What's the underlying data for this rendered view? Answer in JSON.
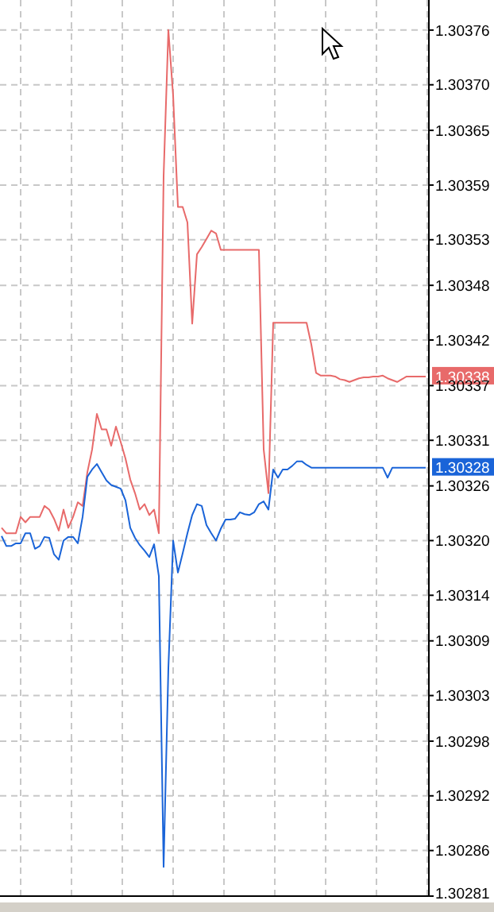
{
  "chart_data": {
    "type": "line",
    "tick_labels": "y",
    "grid": true,
    "categories": [
      null,
      null,
      null,
      null,
      null,
      null,
      null,
      null,
      null,
      null,
      null,
      null,
      null,
      null,
      null,
      null,
      null,
      null,
      null,
      null,
      null,
      null,
      null,
      null,
      null,
      null,
      null,
      null,
      null,
      null,
      null,
      null,
      null,
      null,
      null,
      null,
      null,
      null,
      null,
      null,
      null,
      null,
      null,
      null,
      null,
      null,
      null,
      null,
      null,
      null,
      null,
      null,
      null,
      null,
      null,
      null,
      null,
      null,
      null,
      null,
      null,
      null,
      null,
      null,
      null,
      null,
      null,
      null,
      null,
      null,
      null,
      null,
      null,
      null,
      null,
      null,
      null,
      null,
      null,
      null,
      null,
      null,
      null,
      null,
      null,
      null,
      null,
      null,
      null,
      null
    ],
    "ylim": [
      1.30281,
      1.303793
    ],
    "yticks": [
      1.30376,
      {
        "value": 1.3037,
        "label": "1.30370"
      },
      1.30365,
      1.30359,
      1.30353,
      1.30348,
      1.30342,
      1.30337,
      1.30331,
      1.30326,
      {
        "value": 1.3032,
        "label": "1.30320"
      },
      1.30314,
      1.30309,
      1.30303,
      1.30298,
      1.30292,
      1.30286,
      1.30281
    ],
    "series": [
      {
        "color": "#e86a6a",
        "values": [
          1.303214,
          1.303208,
          1.303208,
          1.303208,
          1.303226,
          1.30322,
          1.303226,
          1.303226,
          1.303226,
          1.303238,
          1.303234,
          1.303224,
          1.303211,
          1.303234,
          1.303214,
          1.303226,
          1.303242,
          1.303238,
          1.303275,
          1.3033,
          1.303339,
          1.303322,
          1.303322,
          1.303304,
          1.303325,
          1.303308,
          1.30329,
          1.303267,
          1.303252,
          1.303234,
          1.30324,
          1.303228,
          1.303234,
          1.303208,
          1.3036,
          1.30376,
          1.303688,
          1.303566,
          1.303566,
          1.303549,
          1.303438,
          1.303514,
          1.303522,
          1.303531,
          1.30354,
          1.303537,
          1.303519,
          1.303519,
          1.303519,
          1.303519,
          1.303519,
          1.303519,
          1.303519,
          1.303519,
          1.303519,
          1.3033,
          1.303252,
          1.303439,
          1.303439,
          1.303439,
          1.303439,
          1.303439,
          1.303439,
          1.303439,
          1.303439,
          1.303415,
          1.303384,
          1.303381,
          1.303381,
          1.303381,
          1.30338,
          1.303377,
          1.303376,
          1.303374,
          1.303376,
          1.303378,
          1.303379,
          1.303379,
          1.30338,
          1.30338,
          1.303381,
          1.303378,
          1.303376,
          1.303374,
          1.303377,
          1.30338,
          1.30338,
          1.30338,
          1.30338,
          1.30338
        ]
      },
      {
        "color": "#1a64d8",
        "values": [
          1.303205,
          1.303194,
          1.303194,
          1.303197,
          1.303197,
          1.303208,
          1.303208,
          1.303191,
          1.303194,
          1.303204,
          1.303203,
          1.303185,
          1.303179,
          1.3032,
          1.303204,
          1.303204,
          1.303197,
          1.303226,
          1.30327,
          1.303278,
          1.303284,
          1.303275,
          1.303266,
          1.303261,
          1.303259,
          1.303257,
          1.303244,
          1.303214,
          1.303203,
          1.303195,
          1.303189,
          1.303182,
          1.303196,
          1.303161,
          1.302842,
          1.30306,
          1.3032,
          1.303165,
          1.303186,
          1.303208,
          1.303228,
          1.30324,
          1.303238,
          1.303217,
          1.303208,
          1.3032,
          1.303213,
          1.303223,
          1.303223,
          1.303224,
          1.303231,
          1.303229,
          1.303228,
          1.303231,
          1.30324,
          1.303243,
          1.303234,
          1.303278,
          1.303269,
          1.303278,
          1.303278,
          1.303282,
          1.303287,
          1.303287,
          1.303283,
          1.30328,
          1.30328,
          1.30328,
          1.30328,
          1.30328,
          1.30328,
          1.30328,
          1.30328,
          1.30328,
          1.30328,
          1.30328,
          1.30328,
          1.30328,
          1.30328,
          1.30328,
          1.30328,
          1.303269,
          1.30328,
          1.30328,
          1.30328,
          1.30328,
          1.30328,
          1.30328,
          1.30328,
          1.30328
        ]
      }
    ],
    "annotations": [
      "1.30338",
      "1.30328"
    ]
  }
}
